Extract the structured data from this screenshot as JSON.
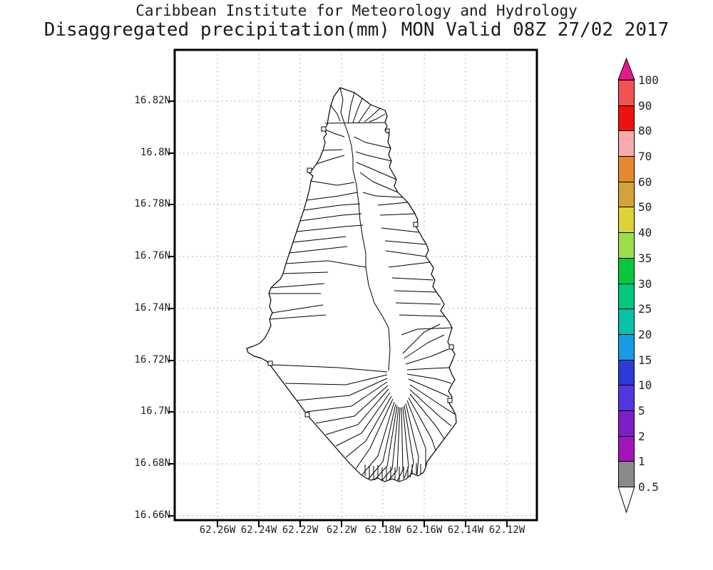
{
  "title": {
    "line1": "Caribbean Institute for Meteorology and Hydrology",
    "line2": "Disaggregated precipitation(mm) MON Valid 08Z 27/02 2017"
  },
  "chart_data": {
    "type": "map",
    "title": "Caribbean Institute for Meteorology and Hydrology",
    "subtitle": "Disaggregated precipitation(mm) MON Valid 08Z 27/02 2017",
    "variable": "Disaggregated precipitation (mm)",
    "region_code": "MON",
    "valid_time": "08Z 27/02 2017",
    "map_content": "Black outline map of Montserrat with watershed/drainage-basin divide lines; no precipitation shading plotted (field below lowest contour 0.5 mm)",
    "grid": "dotted gray graticule",
    "x_axis": {
      "ticks": [
        "62.26W",
        "62.24W",
        "62.22W",
        "62.2W",
        "62.18W",
        "62.16W",
        "62.14W",
        "62.12W"
      ]
    },
    "y_axis": {
      "ticks": [
        "16.82N",
        "16.8N",
        "16.78N",
        "16.76N",
        "16.74N",
        "16.72N",
        "16.7N",
        "16.68N",
        "16.66N"
      ]
    },
    "colorbar": {
      "position": "right",
      "units": "mm",
      "labels": [
        "100",
        "90",
        "80",
        "70",
        "60",
        "50",
        "40",
        "35",
        "30",
        "25",
        "20",
        "15",
        "10",
        "5",
        "2",
        "1",
        "0.5"
      ],
      "segment_colors_top_to_bottom": [
        "#f25252",
        "#ee1111",
        "#f7abab",
        "#e6882e",
        "#d2a33c",
        "#ddd23a",
        "#9edc4a",
        "#06c83f",
        "#00c87d",
        "#07c2a6",
        "#199ae6",
        "#2a3cd8",
        "#5535de",
        "#7d1fc9",
        "#a414bc",
        "#8a8a8a"
      ],
      "above_max_color": "#e6198c",
      "below_min_color": "#ffffff",
      "outline_color": "#000000"
    }
  }
}
